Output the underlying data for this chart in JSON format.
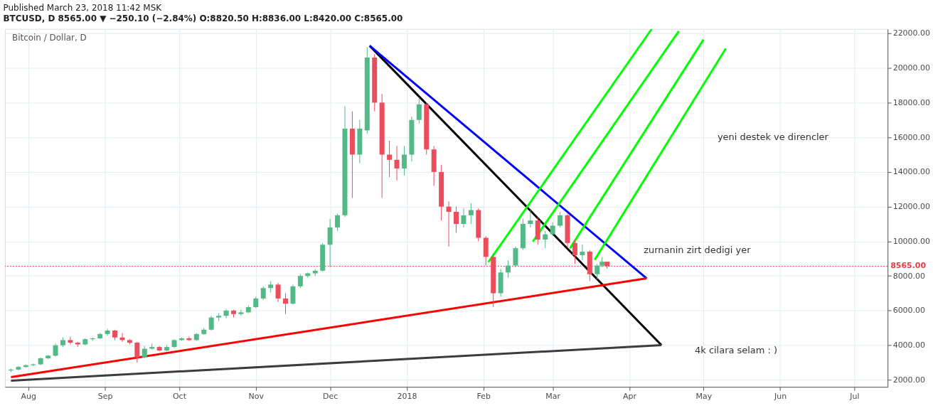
{
  "chart_data": {
    "type": "candlestick",
    "title": "Published March 23, 2018 11:42 MSK",
    "subtitle": "BTCUSD, D 8565.00 ▼ −250.10 (−2.84%) O:8820.50 H:8836.00 L:8420.00 C:8565.00",
    "annotations": [
      "Bitcoin / Dollar, D",
      "yeni destek ve direncler",
      "zurnanin zirt dedigi yer",
      "4k cilara selam : )"
    ],
    "x": [
      "2017-07-25",
      "2017-07-28",
      "2017-07-31",
      "2017-08-03",
      "2017-08-06",
      "2017-08-09",
      "2017-08-12",
      "2017-08-15",
      "2017-08-18",
      "2017-08-21",
      "2017-08-24",
      "2017-08-27",
      "2017-08-30",
      "2017-09-02",
      "2017-09-05",
      "2017-09-08",
      "2017-09-11",
      "2017-09-14",
      "2017-09-17",
      "2017-09-20",
      "2017-09-23",
      "2017-09-26",
      "2017-09-29",
      "2017-10-02",
      "2017-10-05",
      "2017-10-08",
      "2017-10-11",
      "2017-10-14",
      "2017-10-17",
      "2017-10-20",
      "2017-10-23",
      "2017-10-26",
      "2017-10-29",
      "2017-11-01",
      "2017-11-04",
      "2017-11-07",
      "2017-11-10",
      "2017-11-13",
      "2017-11-16",
      "2017-11-19",
      "2017-11-22",
      "2017-11-25",
      "2017-11-28",
      "2017-12-01",
      "2017-12-04",
      "2017-12-07",
      "2017-12-10",
      "2017-12-13",
      "2017-12-16",
      "2017-12-19",
      "2017-12-22",
      "2017-12-25",
      "2017-12-28",
      "2017-12-31",
      "2018-01-03",
      "2018-01-06",
      "2018-01-09",
      "2018-01-12",
      "2018-01-15",
      "2018-01-18",
      "2018-01-21",
      "2018-01-24",
      "2018-01-27",
      "2018-01-30",
      "2018-02-02",
      "2018-02-05",
      "2018-02-08",
      "2018-02-11",
      "2018-02-14",
      "2018-02-17",
      "2018-02-20",
      "2018-02-23",
      "2018-02-26",
      "2018-03-01",
      "2018-03-04",
      "2018-03-07",
      "2018-03-10",
      "2018-03-13",
      "2018-03-16",
      "2018-03-19",
      "2018-03-21",
      "2018-03-23"
    ],
    "ohlc": [
      [
        2550,
        2650,
        2450,
        2600
      ],
      [
        2600,
        2800,
        2550,
        2750
      ],
      [
        2750,
        2900,
        2700,
        2850
      ],
      [
        2850,
        2950,
        2800,
        2900
      ],
      [
        2900,
        3300,
        2850,
        3250
      ],
      [
        3250,
        3450,
        3200,
        3400
      ],
      [
        3400,
        4100,
        3350,
        4000
      ],
      [
        4000,
        4450,
        3900,
        4300
      ],
      [
        4300,
        4500,
        4050,
        4150
      ],
      [
        4150,
        4200,
        3900,
        4050
      ],
      [
        4050,
        4400,
        4000,
        4350
      ],
      [
        4350,
        4450,
        4250,
        4400
      ],
      [
        4400,
        4700,
        4350,
        4650
      ],
      [
        4650,
        4950,
        4550,
        4850
      ],
      [
        4850,
        4900,
        4300,
        4450
      ],
      [
        4450,
        4700,
        4200,
        4300
      ],
      [
        4300,
        4350,
        4050,
        4150
      ],
      [
        4150,
        4200,
        3000,
        3300
      ],
      [
        3300,
        3950,
        3250,
        3800
      ],
      [
        3800,
        4100,
        3750,
        3900
      ],
      [
        3900,
        3950,
        3650,
        3700
      ],
      [
        3700,
        4000,
        3650,
        3900
      ],
      [
        3900,
        4350,
        3850,
        4300
      ],
      [
        4300,
        4450,
        4250,
        4400
      ],
      [
        4400,
        4500,
        4250,
        4300
      ],
      [
        4300,
        4700,
        4250,
        4650
      ],
      [
        4650,
        5000,
        4600,
        4900
      ],
      [
        4900,
        5700,
        4850,
        5600
      ],
      [
        5600,
        5850,
        5400,
        5700
      ],
      [
        5700,
        6100,
        5550,
        6000
      ],
      [
        6000,
        6050,
        5600,
        5800
      ],
      [
        5800,
        6050,
        5700,
        5900
      ],
      [
        5900,
        6300,
        5850,
        6200
      ],
      [
        6200,
        6800,
        6150,
        6700
      ],
      [
        6700,
        7400,
        6600,
        7300
      ],
      [
        7300,
        7700,
        7050,
        7500
      ],
      [
        7500,
        7600,
        6500,
        6700
      ],
      [
        6700,
        7000,
        5800,
        6400
      ],
      [
        6400,
        7500,
        6350,
        7400
      ],
      [
        7400,
        8100,
        7300,
        8000
      ],
      [
        8000,
        8200,
        7900,
        8150
      ],
      [
        8150,
        8400,
        8000,
        8300
      ],
      [
        8300,
        9900,
        8250,
        9800
      ],
      [
        9800,
        11300,
        8500,
        10800
      ],
      [
        10800,
        11600,
        10600,
        11500
      ],
      [
        11500,
        17800,
        11400,
        16500
      ],
      [
        16500,
        17500,
        12500,
        15000
      ],
      [
        15000,
        17000,
        14500,
        16500
      ],
      [
        16400,
        21200,
        16200,
        20600
      ],
      [
        20600,
        20800,
        17500,
        18000
      ],
      [
        18000,
        18500,
        12500,
        15000
      ],
      [
        15000,
        15800,
        13700,
        14700
      ],
      [
        14700,
        15500,
        13500,
        14200
      ],
      [
        14200,
        15500,
        13800,
        15000
      ],
      [
        15000,
        17200,
        14600,
        17000
      ],
      [
        17000,
        18300,
        16800,
        17900
      ],
      [
        17900,
        18000,
        15000,
        15300
      ],
      [
        15300,
        15500,
        13200,
        14000
      ],
      [
        14000,
        14400,
        11200,
        12000
      ],
      [
        12000,
        12300,
        9700,
        11700
      ],
      [
        11700,
        12000,
        10500,
        11000
      ],
      [
        11000,
        11900,
        10800,
        11500
      ],
      [
        11500,
        12200,
        11000,
        11800
      ],
      [
        11800,
        11900,
        10000,
        10200
      ],
      [
        10200,
        10300,
        8600,
        9100
      ],
      [
        9100,
        9300,
        6200,
        7000
      ],
      [
        7000,
        8400,
        6800,
        8200
      ],
      [
        8200,
        8900,
        7900,
        8600
      ],
      [
        8600,
        9700,
        8500,
        9600
      ],
      [
        9600,
        11300,
        9500,
        11000
      ],
      [
        11000,
        11800,
        10800,
        11200
      ],
      [
        11200,
        11400,
        9800,
        10100
      ],
      [
        10100,
        10600,
        9600,
        10400
      ],
      [
        10400,
        11100,
        10300,
        10900
      ],
      [
        10900,
        11700,
        10800,
        11500
      ],
      [
        11500,
        11600,
        9600,
        9900
      ],
      [
        9900,
        10100,
        8700,
        9200
      ],
      [
        9200,
        9800,
        8900,
        9400
      ],
      [
        9400,
        9500,
        7700,
        8100
      ],
      [
        8100,
        8700,
        7800,
        8600
      ],
      [
        8600,
        9100,
        8500,
        8820.5
      ],
      [
        8820.5,
        8836,
        8420,
        8565
      ]
    ],
    "colors": [
      "#53b987",
      "#53b987",
      "#53b987",
      "#53b987",
      "#53b987",
      "#53b987",
      "#53b987",
      "#53b987",
      "#eb4d5c",
      "#eb4d5c",
      "#53b987",
      "#53b987",
      "#53b987",
      "#53b987",
      "#eb4d5c",
      "#eb4d5c",
      "#eb4d5c",
      "#eb4d5c",
      "#53b987",
      "#53b987",
      "#eb4d5c",
      "#53b987",
      "#53b987",
      "#53b987",
      "#eb4d5c",
      "#53b987",
      "#53b987",
      "#53b987",
      "#53b987",
      "#53b987",
      "#eb4d5c",
      "#53b987",
      "#53b987",
      "#53b987",
      "#53b987",
      "#53b987",
      "#eb4d5c",
      "#eb4d5c",
      "#53b987",
      "#53b987",
      "#53b987",
      "#53b987",
      "#53b987",
      "#53b987",
      "#53b987",
      "#53b987",
      "#eb4d5c",
      "#53b987",
      "#53b987",
      "#eb4d5c",
      "#eb4d5c",
      "#eb4d5c",
      "#eb4d5c",
      "#53b987",
      "#53b987",
      "#53b987",
      "#eb4d5c",
      "#eb4d5c",
      "#eb4d5c",
      "#eb4d5c",
      "#eb4d5c",
      "#53b987",
      "#53b987",
      "#eb4d5c",
      "#eb4d5c",
      "#eb4d5c",
      "#53b987",
      "#53b987",
      "#53b987",
      "#53b987",
      "#53b987",
      "#eb4d5c",
      "#53b987",
      "#53b987",
      "#53b987",
      "#eb4d5c",
      "#eb4d5c",
      "#53b987",
      "#eb4d5c",
      "#53b987",
      "#53b987",
      "#eb4d5c"
    ],
    "series": [
      {
        "type": "line",
        "color": "#000000",
        "x": [
          "2017-12-17",
          "2018-04-14"
        ],
        "values": [
          21280,
          4010
        ]
      },
      {
        "type": "line",
        "color": "#0000ff",
        "x": [
          "2017-12-17",
          "2018-04-08"
        ],
        "values": [
          21280,
          7860
        ]
      },
      {
        "type": "line",
        "color": "#ff0000",
        "x": [
          "2017-07-25",
          "2018-04-08"
        ],
        "values": [
          2160,
          7860
        ]
      },
      {
        "type": "line",
        "color": "#3c3c3c",
        "x": [
          "2017-07-25",
          "2018-04-14"
        ],
        "values": [
          1960,
          4010
        ]
      },
      {
        "type": "line",
        "color": "#00ff00",
        "x": [
          "2018-02-03",
          "2018-04-10"
        ],
        "values": [
          8790,
          22240
        ]
      },
      {
        "type": "line",
        "color": "#00ff00",
        "x": [
          "2018-02-21",
          "2018-04-21"
        ],
        "values": [
          9985,
          22120
        ]
      },
      {
        "type": "line",
        "color": "#00ff00",
        "x": [
          "2018-03-08",
          "2018-05-01"
        ],
        "values": [
          9590,
          21640
        ]
      },
      {
        "type": "line",
        "color": "#00ff00",
        "x": [
          "2018-03-18",
          "2018-05-10"
        ],
        "values": [
          8930,
          21120
        ]
      }
    ],
    "ref_lines": [
      {
        "axis": "y",
        "value": 8565,
        "label": "8565.00",
        "color": "#f23645",
        "line_style": "dotted"
      }
    ],
    "xlim": [
      "2017-07-24",
      "2018-07-13"
    ],
    "xticks": [
      {
        "value": "2017-08-01",
        "label": "Aug"
      },
      {
        "value": "2017-09-01",
        "label": "Sep"
      },
      {
        "value": "2017-10-01",
        "label": "Oct"
      },
      {
        "value": "2017-11-01",
        "label": "Nov"
      },
      {
        "value": "2017-12-01",
        "label": "Dec"
      },
      {
        "value": "2018-01-01",
        "label": "2018"
      },
      {
        "value": "2018-02-01",
        "label": "Feb"
      },
      {
        "value": "2018-03-01",
        "label": "Mar"
      },
      {
        "value": "2018-04-01",
        "label": "Apr"
      },
      {
        "value": "2018-05-01",
        "label": "May"
      },
      {
        "value": "2018-06-01",
        "label": "Jun"
      },
      {
        "value": "2018-07-01",
        "label": "Jul"
      }
    ],
    "ylim": [
      1600,
      22250
    ],
    "yticks": [
      {
        "value": 2000,
        "label": "2000.00"
      },
      {
        "value": 4000,
        "label": "4000.00"
      },
      {
        "value": 6000,
        "label": "6000.00"
      },
      {
        "value": 8000,
        "label": "8000.00"
      },
      {
        "value": 10000,
        "label": "10000.00"
      },
      {
        "value": 12000,
        "label": "12000.00"
      },
      {
        "value": 14000,
        "label": "14000.00"
      },
      {
        "value": 16000,
        "label": "16000.00"
      },
      {
        "value": 18000,
        "label": "18000.00"
      },
      {
        "value": 20000,
        "label": "20000.00"
      },
      {
        "value": 22000,
        "label": "22000.00"
      }
    ],
    "grid": true
  }
}
